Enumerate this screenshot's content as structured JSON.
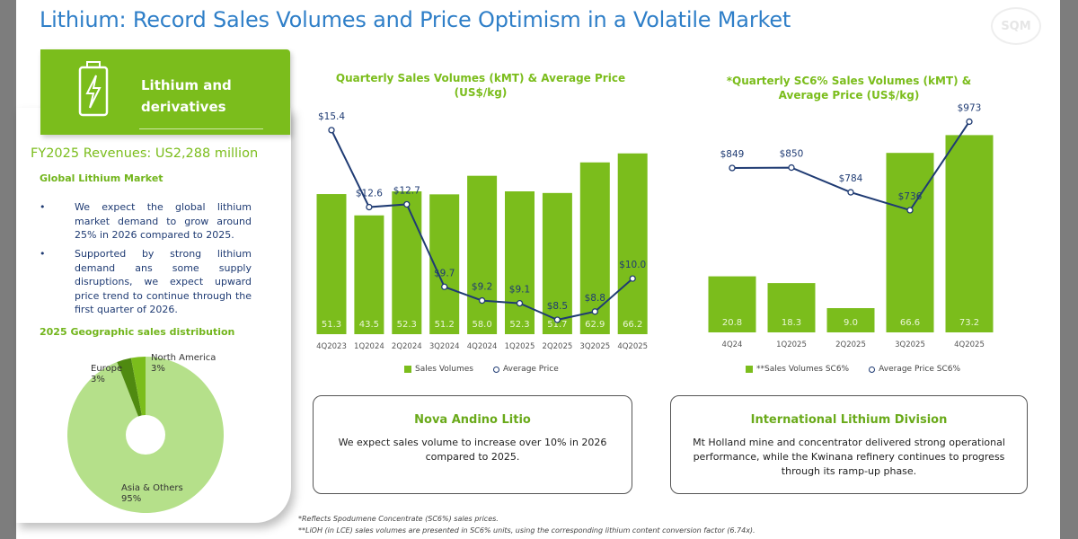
{
  "title": "Lithium: Record Sales Volumes and Price Optimism in a Volatile Market",
  "logo": "SQM",
  "panel": {
    "header": "Lithium and derivatives",
    "header_icon": "battery-bolt-icon",
    "revenues": "FY2025 Revenues: US2,288 million",
    "market_title": "Global Lithium Market",
    "bullets": [
      "We expect the global lithium market demand to grow around 25% in 2026 compared to 2025.",
      "Supported by strong lithium demand ans some supply disruptions, we expect upward price trend to continue through the first quarter of 2026."
    ],
    "dist_title": "2025 Geographic sales distribution"
  },
  "chart_data": [
    {
      "type": "bar+line",
      "title": "Quarterly Sales Volumes (kMT) & Average Price (US$/kg)",
      "categories": [
        "4Q2023",
        "1Q2024",
        "2Q2024",
        "3Q2024",
        "4Q2024",
        "1Q2025",
        "2Q2025",
        "3Q2025",
        "4Q2025"
      ],
      "series": [
        {
          "name": "Sales Volumes",
          "type": "bar",
          "values": [
            51.3,
            43.5,
            52.3,
            51.2,
            58.0,
            52.3,
            51.7,
            62.9,
            66.2
          ],
          "labels": [
            "51.3",
            "43.5",
            "52.3",
            "51.2",
            "58.0",
            "52.3",
            "51.7",
            "62.9",
            "66.2"
          ],
          "color": "#7bbd1c"
        },
        {
          "name": "Average Price",
          "type": "line",
          "values": [
            15.4,
            12.6,
            12.7,
            9.7,
            9.2,
            9.1,
            8.5,
            8.8,
            10.0
          ],
          "labels": [
            "$15.4",
            "$12.6",
            "$12.7",
            "$9.7",
            "$9.2",
            "$9.1",
            "$8.5",
            "$8.8",
            "$10.0"
          ],
          "color": "#1f3b73"
        }
      ]
    },
    {
      "type": "bar+line",
      "title": "*Quarterly SC6% Sales Volumes (kMT) & Average Price (US$/kg)",
      "categories": [
        "4Q24",
        "1Q2025",
        "2Q2025",
        "3Q2025",
        "4Q2025"
      ],
      "series": [
        {
          "name": "**Sales Volumes SC6%",
          "type": "bar",
          "values": [
            20.8,
            18.3,
            9.0,
            66.6,
            73.2
          ],
          "labels": [
            "20.8",
            "18.3",
            "9.0",
            "66.6",
            "73.2"
          ],
          "color": "#7bbd1c"
        },
        {
          "name": "Average Price SC6%",
          "type": "line",
          "values": [
            849,
            850,
            784,
            736,
            973
          ],
          "labels": [
            "$849",
            "$850",
            "$784",
            "$736",
            "$973"
          ],
          "color": "#1f3b73"
        }
      ]
    },
    {
      "type": "pie",
      "title": "2025 Geographic sales distribution",
      "slices": [
        {
          "label": "Asia & Others",
          "value": 95,
          "text": "95%",
          "color": "#b5e08a"
        },
        {
          "label": "Europe",
          "value": 3,
          "text": "3%",
          "color": "#4f8a10"
        },
        {
          "label": "North America",
          "value": 3,
          "text": "3%",
          "color": "#7bbd1c"
        }
      ]
    }
  ],
  "boxes": [
    {
      "title": "Nova Andino Litio",
      "body": "We expect sales volume to increase over 10%  in 2026 compared to 2025."
    },
    {
      "title": "International Lithium Division",
      "body": "Mt Holland mine and concentrator delivered strong operational performance, while the Kwinana refinery continues to progress through its ramp-up phase."
    }
  ],
  "footnotes": [
    "*Reflects Spodumene Concentrate (SC6%) sales prices.",
    "**LiOH (in LCE) sales volumes are presented in SC6% units, using the corresponding lithium content conversion factor (6.74x)."
  ]
}
